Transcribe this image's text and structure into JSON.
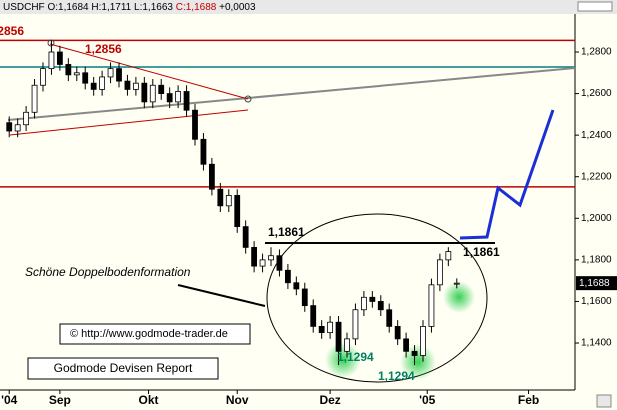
{
  "chart_data": {
    "type": "candlestick",
    "title": "USDCHF",
    "header": {
      "open": "O:1,1684",
      "high": "H:1,1711",
      "low": "L:1,1663",
      "close": "C:1,1688",
      "change": "+0,0003"
    },
    "x": [
      1,
      3,
      5,
      7,
      9,
      11,
      13,
      15,
      17,
      19,
      21,
      23,
      25,
      27,
      29,
      31,
      33,
      35,
      37,
      39,
      41,
      43,
      45,
      47,
      49,
      51,
      53,
      55,
      57,
      59,
      61,
      63,
      65,
      67,
      69,
      71,
      73,
      75,
      77,
      79,
      81,
      83,
      85,
      87,
      89,
      91,
      93,
      95,
      97,
      99,
      101,
      103,
      105,
      107
    ],
    "open": [
      1.246,
      1.242,
      1.245,
      1.251,
      1.264,
      1.272,
      1.28,
      1.274,
      1.269,
      1.27,
      1.265,
      1.262,
      1.268,
      1.272,
      1.266,
      1.262,
      1.265,
      1.256,
      1.264,
      1.26,
      1.256,
      1.261,
      1.252,
      1.238,
      1.226,
      1.214,
      1.206,
      1.211,
      1.196,
      1.186,
      1.177,
      1.18,
      1.182,
      1.175,
      1.169,
      1.166,
      1.158,
      1.148,
      1.145,
      1.15,
      1.136,
      1.142,
      1.156,
      1.162,
      1.16,
      1.156,
      1.148,
      1.142,
      1.136,
      1.134,
      1.148,
      1.168,
      1.18,
      1.1684
    ],
    "high": [
      1.249,
      1.248,
      1.254,
      1.267,
      1.275,
      1.2856,
      1.283,
      1.277,
      1.273,
      1.273,
      1.268,
      1.271,
      1.275,
      1.275,
      1.269,
      1.268,
      1.268,
      1.267,
      1.267,
      1.263,
      1.264,
      1.264,
      1.255,
      1.241,
      1.229,
      1.217,
      1.214,
      1.214,
      1.199,
      1.189,
      1.183,
      1.1861,
      1.185,
      1.178,
      1.172,
      1.169,
      1.161,
      1.151,
      1.153,
      1.153,
      1.145,
      1.159,
      1.165,
      1.165,
      1.163,
      1.159,
      1.151,
      1.145,
      1.139,
      1.151,
      1.171,
      1.183,
      1.1861,
      1.1711
    ],
    "low": [
      1.239,
      1.239,
      1.242,
      1.248,
      1.261,
      1.269,
      1.271,
      1.266,
      1.266,
      1.262,
      1.259,
      1.259,
      1.265,
      1.263,
      1.259,
      1.259,
      1.253,
      1.253,
      1.257,
      1.253,
      1.253,
      1.249,
      1.235,
      1.223,
      1.211,
      1.203,
      1.203,
      1.193,
      1.183,
      1.174,
      1.174,
      1.177,
      1.172,
      1.166,
      1.163,
      1.155,
      1.145,
      1.142,
      1.142,
      1.1294,
      1.133,
      1.139,
      1.153,
      1.157,
      1.153,
      1.145,
      1.139,
      1.133,
      1.1294,
      1.131,
      1.145,
      1.165,
      1.177,
      1.1663
    ],
    "close": [
      1.242,
      1.245,
      1.251,
      1.264,
      1.272,
      1.28,
      1.274,
      1.269,
      1.27,
      1.265,
      1.262,
      1.268,
      1.272,
      1.266,
      1.262,
      1.265,
      1.256,
      1.264,
      1.26,
      1.256,
      1.261,
      1.252,
      1.238,
      1.226,
      1.214,
      1.206,
      1.211,
      1.196,
      1.186,
      1.177,
      1.18,
      1.182,
      1.175,
      1.169,
      1.166,
      1.158,
      1.148,
      1.145,
      1.15,
      1.136,
      1.142,
      1.156,
      1.162,
      1.16,
      1.156,
      1.148,
      1.142,
      1.136,
      1.134,
      1.148,
      1.168,
      1.18,
      1.184,
      1.1688
    ],
    "xlim": [
      0,
      135
    ],
    "xticks": [
      {
        "value": 1,
        "label": "'04"
      },
      {
        "value": 13,
        "label": "Sep"
      },
      {
        "value": 34,
        "label": "Okt"
      },
      {
        "value": 55,
        "label": "Nov"
      },
      {
        "value": 77,
        "label": "Dez"
      },
      {
        "value": 100,
        "label": "'05"
      },
      {
        "value": 124,
        "label": "Feb"
      }
    ],
    "ylim": [
      1.1174,
      1.2978
    ],
    "yticks": [
      {
        "value": 1.14,
        "label": "1,1400"
      },
      {
        "value": 1.16,
        "label": "1,1600"
      },
      {
        "value": 1.18,
        "label": "1,1800"
      },
      {
        "value": 1.2,
        "label": "1,2000"
      },
      {
        "value": 1.22,
        "label": "1,2200"
      },
      {
        "value": 1.24,
        "label": "1,2400"
      },
      {
        "value": 1.26,
        "label": "1,2600"
      },
      {
        "value": 1.28,
        "label": "1,2800"
      }
    ],
    "last_price": {
      "value": 1.1688,
      "label": "1,1688"
    },
    "levels": [
      {
        "value": 1.2856,
        "color": "#c00000"
      },
      {
        "value": 1.2728,
        "color": "#008080"
      },
      {
        "value": 1.2151,
        "color": "#c00000"
      }
    ],
    "annotations": [
      "1,2856",
      "1,1861",
      "1,1861",
      "1,1294",
      "1,1294",
      "Schöne Doppelbodenformation",
      "© http://www.godmode-trader.de",
      "Godmode Devisen Report"
    ]
  }
}
